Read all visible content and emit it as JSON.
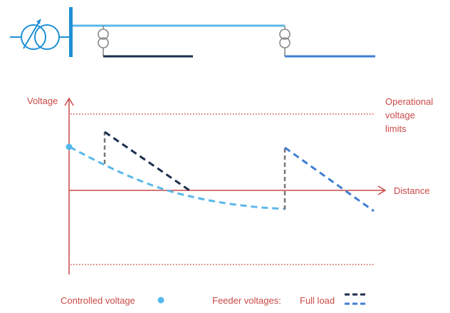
{
  "labels": {
    "voltage": "Voltage",
    "distance": "Distance",
    "limits": [
      "Operational",
      "voltage",
      "limits"
    ],
    "controlled_voltage": "Controlled voltage",
    "feeder_voltages": "Feeder voltages:",
    "full_load": "Full load"
  },
  "colors": {
    "axis": "#c94a47",
    "text": "#c94a47",
    "busbar": "#1e90d6",
    "main_line": "#5bb8ea",
    "dark_feeder": "#1b2f4f",
    "mid_feeder": "#3f7fd0",
    "controlled": "#55b9ee",
    "step": "#777777",
    "transformer": "#888888"
  },
  "icons": [
    "tap-changer-transformer-icon",
    "distribution-transformer-icon"
  ]
}
